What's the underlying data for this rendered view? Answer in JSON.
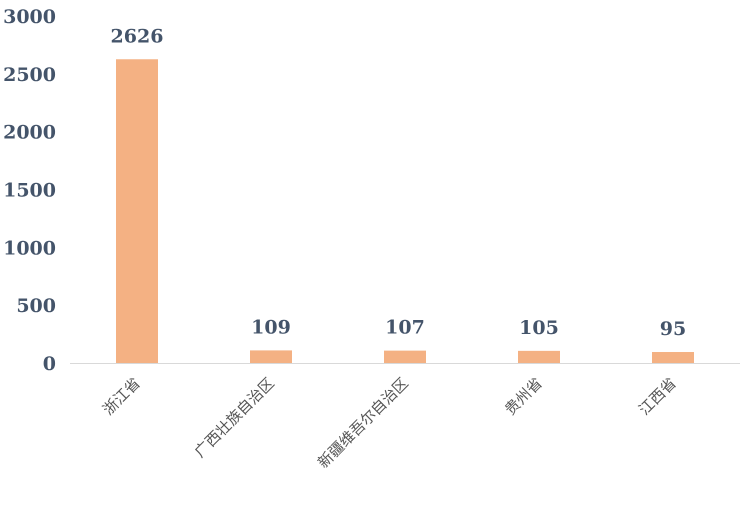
{
  "chart_data": {
    "type": "bar",
    "title": "",
    "xlabel": "",
    "ylabel": "",
    "categories": [
      "浙江省",
      "广西壮族自治区",
      "新疆维吾尔自治区",
      "贵州省",
      "江西省"
    ],
    "values": [
      2626,
      109,
      107,
      105,
      95
    ],
    "data_labels": [
      "2626",
      "109",
      "107",
      "105",
      "95"
    ],
    "ylim": [
      0,
      3000
    ],
    "yticks": [
      0,
      500,
      1000,
      1500,
      2000,
      2500,
      3000
    ],
    "ytick_labels": [
      "0",
      "500",
      "1000",
      "1500",
      "2000",
      "2500",
      "3000"
    ],
    "grid": false,
    "legend": "none",
    "bar_color": "#f4b183",
    "axis_color": "#d9d9d9"
  }
}
